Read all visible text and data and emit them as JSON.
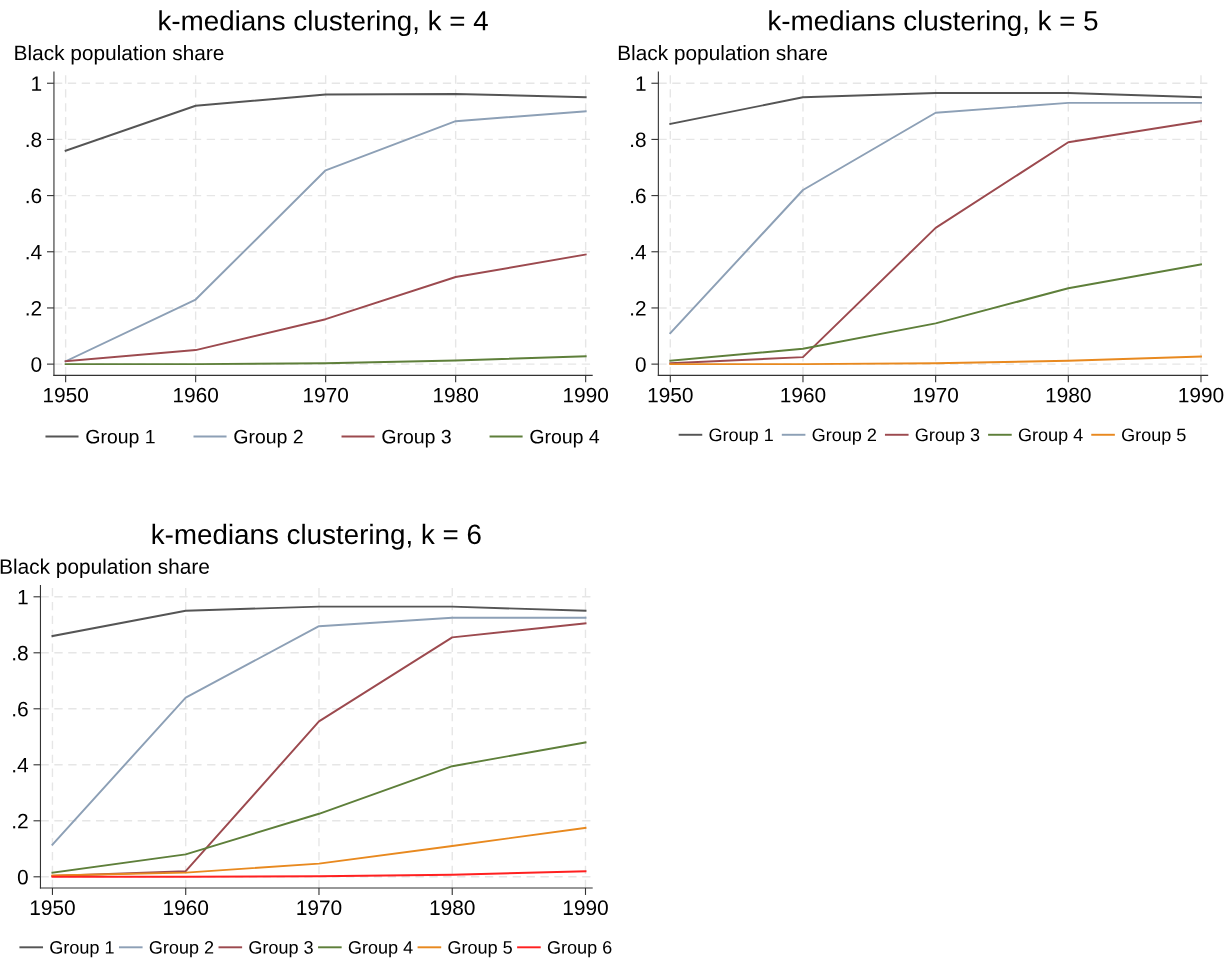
{
  "chart_data": [
    {
      "type": "line",
      "title": "k-medians clustering, k = 4",
      "ylabel": "Black population share",
      "x": [
        1950,
        1960,
        1970,
        1980,
        1990
      ],
      "xlim": [
        1949.1,
        1990.5
      ],
      "xticks": [
        1950,
        1960,
        1970,
        1980,
        1990
      ],
      "ylim": [
        -0.04,
        1.04
      ],
      "yticks": [
        0,
        {
          "value": 0.2,
          "label": ".2"
        },
        {
          "value": 0.4,
          "label": ".4"
        },
        {
          "value": 0.6,
          "label": ".6"
        },
        {
          "value": 0.8,
          "label": ".8"
        },
        1
      ],
      "grid": true,
      "legend": "bottom",
      "line_style": "solid",
      "series": [
        {
          "name": "Group 1",
          "color": "#555555",
          "values": [
            0.76,
            0.92,
            0.96,
            0.962,
            0.95
          ]
        },
        {
          "name": "Group 2",
          "color": "#8da0b6",
          "values": [
            0.01,
            0.23,
            0.69,
            0.865,
            0.9
          ]
        },
        {
          "name": "Group 3",
          "color": "#9c4a4f",
          "values": [
            0.01,
            0.05,
            0.16,
            0.31,
            0.39
          ]
        },
        {
          "name": "Group 4",
          "color": "#5e7f3a",
          "values": [
            0.0,
            0.0,
            0.003,
            0.013,
            0.028
          ]
        }
      ]
    },
    {
      "type": "line",
      "title": "k-medians clustering, k = 5",
      "ylabel": "Black population share",
      "x": [
        1950,
        1960,
        1970,
        1980,
        1990
      ],
      "xlim": [
        1949.1,
        1990.5
      ],
      "xticks": [
        1950,
        1960,
        1970,
        1980,
        1990
      ],
      "ylim": [
        -0.04,
        1.04
      ],
      "yticks": [
        0,
        {
          "value": 0.2,
          "label": ".2"
        },
        {
          "value": 0.4,
          "label": ".4"
        },
        {
          "value": 0.6,
          "label": ".6"
        },
        {
          "value": 0.8,
          "label": ".8"
        },
        1
      ],
      "grid": true,
      "legend": "bottom",
      "line_style": "solid",
      "series": [
        {
          "name": "Group 1",
          "color": "#555555",
          "values": [
            0.855,
            0.95,
            0.965,
            0.965,
            0.95
          ]
        },
        {
          "name": "Group 2",
          "color": "#8da0b6",
          "values": [
            0.11,
            0.62,
            0.895,
            0.93,
            0.93
          ]
        },
        {
          "name": "Group 3",
          "color": "#9c4a4f",
          "values": [
            0.003,
            0.025,
            0.485,
            0.79,
            0.865
          ]
        },
        {
          "name": "Group 4",
          "color": "#5e7f3a",
          "values": [
            0.012,
            0.055,
            0.145,
            0.27,
            0.355
          ]
        },
        {
          "name": "Group 5",
          "color": "#e8891f",
          "values": [
            0.0,
            0.0,
            0.003,
            0.012,
            0.027
          ]
        }
      ]
    },
    {
      "type": "line",
      "title": "k-medians clustering, k = 6",
      "ylabel": "Black population share",
      "x": [
        1950,
        1960,
        1970,
        1980,
        1990
      ],
      "xlim": [
        1949.1,
        1990.5
      ],
      "xticks": [
        1950,
        1960,
        1970,
        1980,
        1990
      ],
      "ylim": [
        -0.04,
        1.04
      ],
      "yticks": [
        0,
        {
          "value": 0.2,
          "label": ".2"
        },
        {
          "value": 0.4,
          "label": ".4"
        },
        {
          "value": 0.6,
          "label": ".6"
        },
        {
          "value": 0.8,
          "label": ".8"
        },
        1
      ],
      "grid": true,
      "legend": "bottom",
      "line_style": "solid",
      "series": [
        {
          "name": "Group 1",
          "color": "#555555",
          "values": [
            0.86,
            0.95,
            0.965,
            0.965,
            0.95
          ]
        },
        {
          "name": "Group 2",
          "color": "#8da0b6",
          "values": [
            0.115,
            0.64,
            0.895,
            0.925,
            0.925
          ]
        },
        {
          "name": "Group 3",
          "color": "#9c4a4f",
          "values": [
            0.003,
            0.02,
            0.555,
            0.855,
            0.905
          ]
        },
        {
          "name": "Group 4",
          "color": "#5e7f3a",
          "values": [
            0.015,
            0.08,
            0.225,
            0.395,
            0.48
          ]
        },
        {
          "name": "Group 5",
          "color": "#e8891f",
          "values": [
            0.005,
            0.015,
            0.047,
            0.11,
            0.175
          ]
        },
        {
          "name": "Group 6",
          "color": "#ff2020",
          "values": [
            0.0,
            0.0,
            0.002,
            0.007,
            0.02
          ]
        }
      ]
    }
  ]
}
